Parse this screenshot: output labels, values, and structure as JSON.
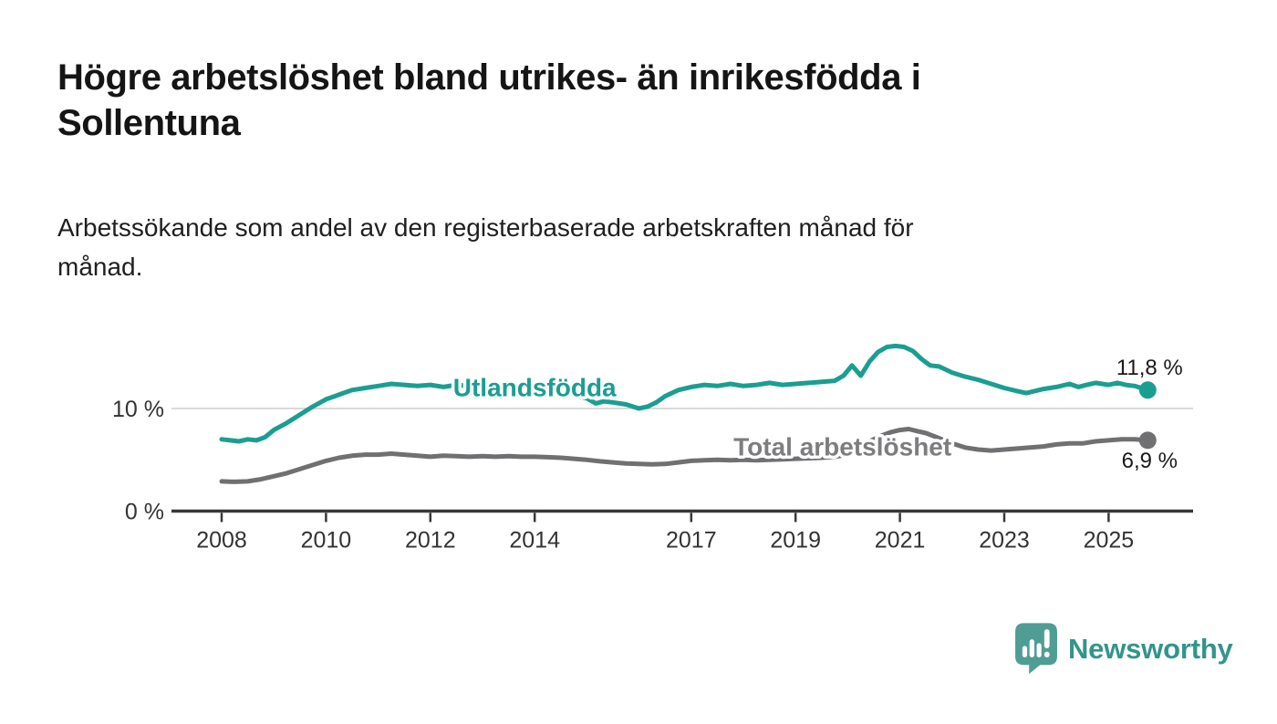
{
  "header": {
    "title_line1": "Högre arbetslöshet bland utrikes- än inrikesfödda i",
    "title_line2": "Sollentuna",
    "subtitle_line1": "Arbetssökande som andel av den registerbaserade arbetskraften månad för",
    "subtitle_line2": "månad."
  },
  "chart_data": {
    "type": "line",
    "title": "Högre arbetslöshet bland utrikes- än inrikesfödda i Sollentuna",
    "subtitle": "Arbetssökande som andel av den registerbaserade arbetskraften månad för månad.",
    "x_unit": "year",
    "y_unit": "percent",
    "x_range": [
      2007.0,
      2026.6
    ],
    "y_range": [
      0,
      18
    ],
    "grid": "single-horizontal-gridline-at-10",
    "legend_position": "inline-labels-on-lines",
    "x_ticks": [
      {
        "value": 2008,
        "label": "2008"
      },
      {
        "value": 2010,
        "label": "2010"
      },
      {
        "value": 2012,
        "label": "2012"
      },
      {
        "value": 2014,
        "label": "2014"
      },
      {
        "value": 2017,
        "label": "2017"
      },
      {
        "value": 2019,
        "label": "2019"
      },
      {
        "value": 2021,
        "label": "2021"
      },
      {
        "value": 2023,
        "label": "2023"
      },
      {
        "value": 2025,
        "label": "2025"
      }
    ],
    "y_ticks": [
      {
        "value": 0,
        "label": "0 %"
      },
      {
        "value": 10,
        "label": "10 %"
      }
    ],
    "series": [
      {
        "id": "utlandsfodda",
        "name": "Utlandsfödda",
        "color": "#1b9e91",
        "label_color": "#1b9e91",
        "label_pos": {
          "x": 2014.0,
          "y": 12.1
        },
        "end_label": "11,8 %",
        "end_label_position": "above",
        "end_value": 11.8,
        "points": [
          [
            2008.0,
            7.0
          ],
          [
            2008.17,
            6.9
          ],
          [
            2008.33,
            6.8
          ],
          [
            2008.5,
            7.0
          ],
          [
            2008.67,
            6.9
          ],
          [
            2008.83,
            7.2
          ],
          [
            2009.0,
            7.9
          ],
          [
            2009.25,
            8.6
          ],
          [
            2009.5,
            9.4
          ],
          [
            2009.75,
            10.2
          ],
          [
            2010.0,
            10.9
          ],
          [
            2010.17,
            11.2
          ],
          [
            2010.33,
            11.5
          ],
          [
            2010.5,
            11.8
          ],
          [
            2010.75,
            12.0
          ],
          [
            2011.0,
            12.2
          ],
          [
            2011.25,
            12.4
          ],
          [
            2011.5,
            12.3
          ],
          [
            2011.75,
            12.2
          ],
          [
            2012.0,
            12.3
          ],
          [
            2012.25,
            12.1
          ],
          [
            2012.5,
            12.3
          ],
          [
            2012.75,
            12.2
          ],
          [
            2013.0,
            12.2
          ],
          [
            2013.25,
            12.3
          ],
          [
            2013.5,
            12.1
          ],
          [
            2013.75,
            12.2
          ],
          [
            2014.0,
            12.0
          ],
          [
            2014.25,
            11.9
          ],
          [
            2014.5,
            11.7
          ],
          [
            2014.75,
            11.3
          ],
          [
            2015.0,
            11.0
          ],
          [
            2015.17,
            10.5
          ],
          [
            2015.33,
            10.7
          ],
          [
            2015.5,
            10.6
          ],
          [
            2015.75,
            10.4
          ],
          [
            2016.0,
            10.0
          ],
          [
            2016.17,
            10.2
          ],
          [
            2016.33,
            10.6
          ],
          [
            2016.5,
            11.2
          ],
          [
            2016.75,
            11.8
          ],
          [
            2017.0,
            12.1
          ],
          [
            2017.25,
            12.3
          ],
          [
            2017.5,
            12.2
          ],
          [
            2017.75,
            12.4
          ],
          [
            2018.0,
            12.2
          ],
          [
            2018.25,
            12.3
          ],
          [
            2018.5,
            12.5
          ],
          [
            2018.75,
            12.3
          ],
          [
            2019.0,
            12.4
          ],
          [
            2019.25,
            12.5
          ],
          [
            2019.5,
            12.6
          ],
          [
            2019.75,
            12.7
          ],
          [
            2019.92,
            13.2
          ],
          [
            2020.08,
            14.2
          ],
          [
            2020.25,
            13.2
          ],
          [
            2020.42,
            14.6
          ],
          [
            2020.58,
            15.5
          ],
          [
            2020.75,
            16.0
          ],
          [
            2020.92,
            16.1
          ],
          [
            2021.08,
            16.0
          ],
          [
            2021.25,
            15.6
          ],
          [
            2021.42,
            14.8
          ],
          [
            2021.58,
            14.2
          ],
          [
            2021.75,
            14.1
          ],
          [
            2022.0,
            13.5
          ],
          [
            2022.25,
            13.1
          ],
          [
            2022.5,
            12.8
          ],
          [
            2022.75,
            12.4
          ],
          [
            2023.0,
            12.0
          ],
          [
            2023.25,
            11.7
          ],
          [
            2023.42,
            11.5
          ],
          [
            2023.58,
            11.7
          ],
          [
            2023.75,
            11.9
          ],
          [
            2024.0,
            12.1
          ],
          [
            2024.25,
            12.4
          ],
          [
            2024.42,
            12.1
          ],
          [
            2024.58,
            12.3
          ],
          [
            2024.75,
            12.5
          ],
          [
            2025.0,
            12.3
          ],
          [
            2025.17,
            12.5
          ],
          [
            2025.33,
            12.3
          ],
          [
            2025.5,
            12.2
          ],
          [
            2025.75,
            11.8
          ]
        ]
      },
      {
        "id": "total-arbetsloshet",
        "name": "Total arbetslöshet",
        "color": "#707073",
        "label_color": "#7d7d80",
        "label_pos": {
          "x": 2019.9,
          "y": 6.3
        },
        "end_label": "6,9 %",
        "end_label_position": "below",
        "end_value": 6.9,
        "points": [
          [
            2008.0,
            2.9
          ],
          [
            2008.25,
            2.85
          ],
          [
            2008.5,
            2.9
          ],
          [
            2008.75,
            3.1
          ],
          [
            2009.0,
            3.4
          ],
          [
            2009.25,
            3.7
          ],
          [
            2009.5,
            4.1
          ],
          [
            2009.75,
            4.5
          ],
          [
            2010.0,
            4.9
          ],
          [
            2010.25,
            5.2
          ],
          [
            2010.5,
            5.4
          ],
          [
            2010.75,
            5.5
          ],
          [
            2011.0,
            5.5
          ],
          [
            2011.25,
            5.6
          ],
          [
            2011.5,
            5.5
          ],
          [
            2011.75,
            5.4
          ],
          [
            2012.0,
            5.3
          ],
          [
            2012.25,
            5.4
          ],
          [
            2012.5,
            5.35
          ],
          [
            2012.75,
            5.3
          ],
          [
            2013.0,
            5.35
          ],
          [
            2013.25,
            5.3
          ],
          [
            2013.5,
            5.35
          ],
          [
            2013.75,
            5.3
          ],
          [
            2014.0,
            5.3
          ],
          [
            2014.25,
            5.25
          ],
          [
            2014.5,
            5.2
          ],
          [
            2014.75,
            5.1
          ],
          [
            2015.0,
            5.0
          ],
          [
            2015.25,
            4.85
          ],
          [
            2015.5,
            4.75
          ],
          [
            2015.75,
            4.65
          ],
          [
            2016.0,
            4.6
          ],
          [
            2016.25,
            4.55
          ],
          [
            2016.5,
            4.6
          ],
          [
            2016.75,
            4.75
          ],
          [
            2017.0,
            4.9
          ],
          [
            2017.25,
            4.95
          ],
          [
            2017.5,
            5.0
          ],
          [
            2017.75,
            4.95
          ],
          [
            2018.0,
            5.0
          ],
          [
            2018.25,
            4.95
          ],
          [
            2018.5,
            5.0
          ],
          [
            2018.75,
            5.05
          ],
          [
            2019.0,
            5.1
          ],
          [
            2019.25,
            5.15
          ],
          [
            2019.5,
            5.2
          ],
          [
            2019.75,
            5.3
          ],
          [
            2020.0,
            5.5
          ],
          [
            2020.17,
            6.2
          ],
          [
            2020.33,
            6.6
          ],
          [
            2020.5,
            7.0
          ],
          [
            2020.67,
            7.4
          ],
          [
            2020.83,
            7.7
          ],
          [
            2021.0,
            7.9
          ],
          [
            2021.17,
            8.0
          ],
          [
            2021.33,
            7.8
          ],
          [
            2021.5,
            7.6
          ],
          [
            2021.75,
            7.1
          ],
          [
            2022.0,
            6.6
          ],
          [
            2022.25,
            6.2
          ],
          [
            2022.5,
            6.0
          ],
          [
            2022.75,
            5.9
          ],
          [
            2023.0,
            6.0
          ],
          [
            2023.25,
            6.1
          ],
          [
            2023.5,
            6.2
          ],
          [
            2023.75,
            6.3
          ],
          [
            2024.0,
            6.5
          ],
          [
            2024.25,
            6.6
          ],
          [
            2024.5,
            6.6
          ],
          [
            2024.75,
            6.8
          ],
          [
            2025.0,
            6.9
          ],
          [
            2025.25,
            7.0
          ],
          [
            2025.5,
            7.0
          ],
          [
            2025.75,
            6.9
          ]
        ]
      }
    ],
    "colors": {
      "gridline": "#d9d9d9",
      "axis": "#383838",
      "tick_label": "#333333",
      "value_label": "#1a1a1a"
    }
  },
  "footer": {
    "brand": "Newsworthy",
    "brand_color": "#33948c",
    "icon": "newsworthy-speech-bubble-chart-icon",
    "icon_color": "#4f9d95"
  }
}
